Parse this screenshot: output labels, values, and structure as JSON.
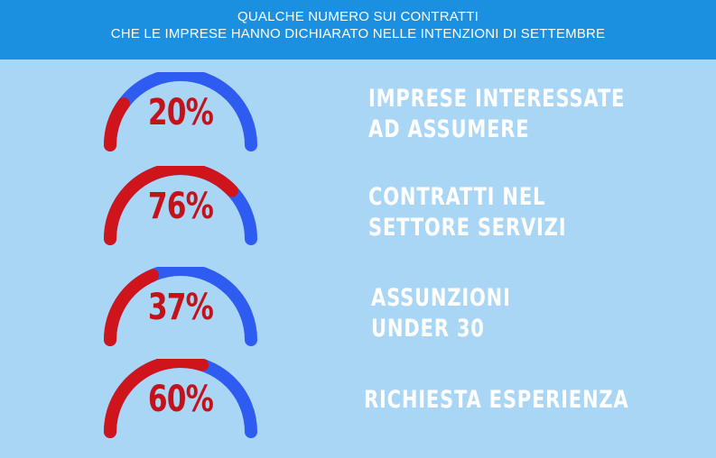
{
  "header": {
    "line1": "QUALCHE NUMERO SUI CONTRATTI",
    "line2": "CHE LE IMPRESE HANNO DICHIARATO NELLE INTENZIONI DI  SETTEMBRE"
  },
  "colors": {
    "header_bg": "#1b8fe0",
    "page_bg": "#a9d6f5",
    "gauge_fill": "#d0141c",
    "gauge_track": "#2f5cf0",
    "percent_text": "#c4121a",
    "label_text": "#ffffff"
  },
  "chart_data": {
    "type": "gauge",
    "unit": "%",
    "max": 100,
    "items": [
      {
        "label_line1": "IMPRESE INTERESSATE",
        "label_line2": "AD ASSUMERE",
        "value": 20,
        "display": "20%"
      },
      {
        "label_line1": "CONTRATTI NEL",
        "label_line2": "SETTORE SERVIZI",
        "value": 76,
        "display": "76%"
      },
      {
        "label_line1": "ASSUNZIONI",
        "label_line2": "UNDER 30",
        "value": 37,
        "display": "37%"
      },
      {
        "label_line1": "RICHIESTA ESPERIENZA",
        "label_line2": "",
        "value": 60,
        "display": "60%"
      }
    ]
  }
}
